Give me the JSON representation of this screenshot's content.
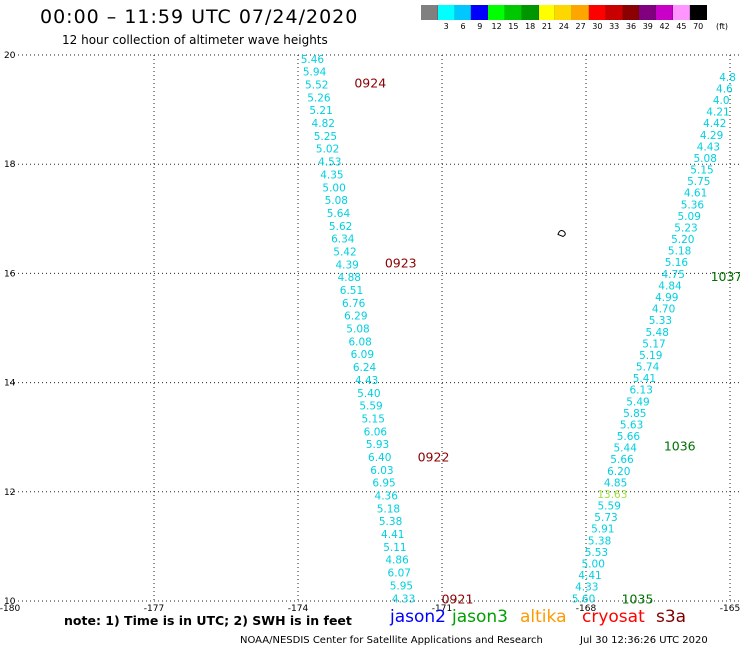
{
  "header": {
    "title": "00:00 – 11:59 UTC 07/24/2020",
    "subtitle": "12 hour collection of altimeter wave heights"
  },
  "color_scale": {
    "unit": "(ft)",
    "bins": [
      {
        "label": "",
        "color": "#808080"
      },
      {
        "label": "3",
        "color": "#00ffff"
      },
      {
        "label": "6",
        "color": "#00c8ff"
      },
      {
        "label": "9",
        "color": "#0000ff"
      },
      {
        "label": "12",
        "color": "#00ff00"
      },
      {
        "label": "15",
        "color": "#00c800"
      },
      {
        "label": "18",
        "color": "#009600"
      },
      {
        "label": "21",
        "color": "#ffff00"
      },
      {
        "label": "24",
        "color": "#ffd700"
      },
      {
        "label": "27",
        "color": "#ffa500"
      },
      {
        "label": "30",
        "color": "#ff0000"
      },
      {
        "label": "33",
        "color": "#c80000"
      },
      {
        "label": "36",
        "color": "#8b0000"
      },
      {
        "label": "39",
        "color": "#800080"
      },
      {
        "label": "42",
        "color": "#c800c8"
      },
      {
        "label": "45",
        "color": "#ff96ff"
      },
      {
        "label": "70",
        "color": "#000000"
      }
    ]
  },
  "map": {
    "lon_range": [
      -180,
      -165
    ],
    "lat_range": [
      10,
      20
    ],
    "lon_ticks": [
      "-180",
      "-177",
      "-174",
      "-171",
      "-168",
      "-165"
    ],
    "lat_ticks": [
      "10",
      "12",
      "14",
      "16",
      "18",
      "20"
    ],
    "island_marker": {
      "lon": -168.5,
      "lat": 16.75
    }
  },
  "tracks": [
    {
      "name": "jason3-west",
      "color": "#00d0e0",
      "start": {
        "lon": -173.7,
        "lat": 19.93
      },
      "end": {
        "lon": -171.8,
        "lat": 10.05
      },
      "values": [
        "5.46",
        "5.94",
        "5.52",
        "5.26",
        "5.21",
        "4.82",
        "5.25",
        "5.02",
        "4.53",
        "4.35",
        "5.00",
        "5.08",
        "5.64",
        "5.62",
        "6.34",
        "5.42",
        "4.39",
        "4.88",
        "6.51",
        "6.76",
        "6.29",
        "5.08",
        "6.08",
        "6.09",
        "6.24",
        "4.43",
        "5.40",
        "5.59",
        "5.15",
        "6.06",
        "5.93",
        "6.40",
        "6.03",
        "6.95",
        "4.36",
        "5.18",
        "5.38",
        "4.41",
        "5.11",
        "4.86",
        "6.07",
        "5.95",
        "4.33"
      ],
      "times": [
        {
          "label": "0924",
          "lat": 19.5,
          "dx": 10
        },
        {
          "label": "0923",
          "lat": 16.2,
          "dx": 10
        },
        {
          "label": "0922",
          "lat": 12.65,
          "dx": 10
        },
        {
          "label": "0921",
          "lat": 10.05,
          "dx": 10
        }
      ]
    },
    {
      "name": "jason3-east",
      "color": "#00d0e0",
      "start": {
        "lon": -168.05,
        "lat": 10.05
      },
      "end": {
        "lon": -165.05,
        "lat": 19.6
      },
      "values": [
        "5.60",
        "4.33",
        "4.41",
        "5.00",
        "5.53",
        "5.38",
        "5.91",
        "5.73",
        "5.59",
        "13.63",
        "4.85",
        "6.20",
        "5.66",
        "5.44",
        "5.66",
        "5.63",
        "5.85",
        "5.49",
        "6.13",
        "5.41",
        "5.74",
        "5.19",
        "5.17",
        "5.48",
        "5.33",
        "4.70",
        "4.99",
        "4.84",
        "4.75",
        "5.16",
        "5.18",
        "5.20",
        "5.23",
        "5.09",
        "5.36",
        "4.61",
        "5.75",
        "5.15",
        "5.08",
        "4.43",
        "4.29",
        "4.42",
        "4.21",
        "4.0",
        "4.6",
        "4.8"
      ],
      "highlights": {
        "9": "#a0e040"
      },
      "times": [
        {
          "label": "1035",
          "lat": 10.05,
          "dx": 10
        },
        {
          "label": "1036",
          "lat": 12.85,
          "dx": 10
        },
        {
          "label": "1037",
          "lat": 15.95,
          "dx": 10
        }
      ]
    }
  ],
  "legend": {
    "note": "note:  1) Time is in UTC;  2) SWH is in feet",
    "satellites": [
      {
        "name": "jason2",
        "color": "#0000ff"
      },
      {
        "name": "jason3",
        "color": "#00a000"
      },
      {
        "name": "altika",
        "color": "#ff9900"
      },
      {
        "name": "cryosat",
        "color": "#ff0000"
      },
      {
        "name": "s3a",
        "color": "#800000"
      }
    ]
  },
  "footer": {
    "credit": "NOAA/NESDIS Center for Satellite Applications and Research",
    "timestamp": "Jul 30 12:36:26 UTC 2020"
  }
}
